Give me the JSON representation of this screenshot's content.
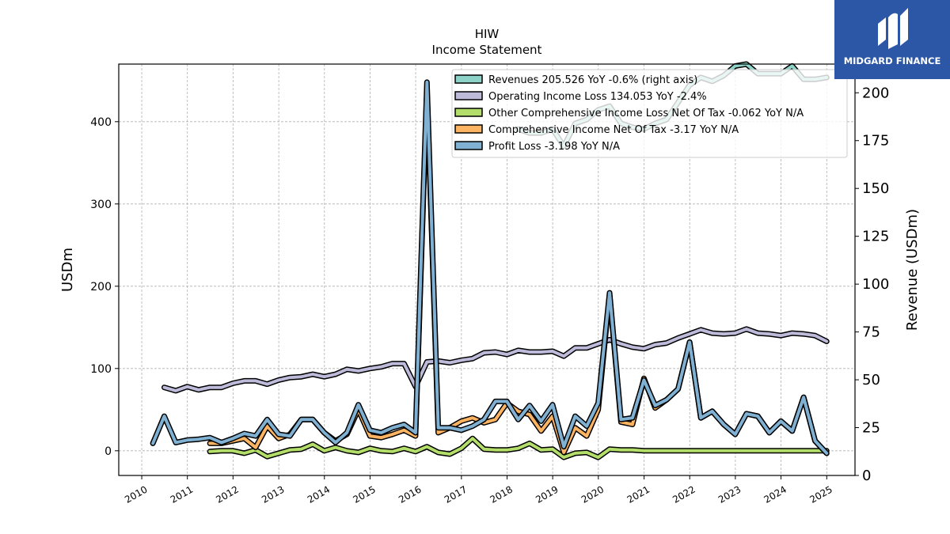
{
  "chart_data": {
    "type": "line",
    "title": "HIW",
    "subtitle": "Income Statement",
    "ylabel": "USDm",
    "y2label": "Revenue (USDm)",
    "ylim": [
      -30,
      470
    ],
    "y2lim": [
      0,
      215
    ],
    "xlim": [
      "2009-07-01",
      "2025-08-15"
    ],
    "yticks": [
      0,
      100,
      200,
      300,
      400
    ],
    "y2ticks": [
      0,
      25,
      50,
      75,
      100,
      125,
      150,
      175,
      200
    ],
    "xticks": [
      "2010",
      "2011",
      "2012",
      "2013",
      "2014",
      "2015",
      "2016",
      "2017",
      "2018",
      "2019",
      "2020",
      "2021",
      "2022",
      "2023",
      "2024",
      "2025"
    ],
    "grid": true,
    "legend_position": "top-right",
    "series": [
      {
        "name": "Revenues  205.526 YoY -0.6% (right axis)",
        "axis": "right",
        "color": "#8dd3c7",
        "x": [
          "2018-03-31",
          "2018-06-30",
          "2018-09-30",
          "2018-12-31",
          "2019-03-31",
          "2019-06-30",
          "2019-09-30",
          "2019-12-31",
          "2020-03-31",
          "2020-06-30",
          "2020-09-30",
          "2020-12-31",
          "2021-03-31",
          "2021-06-30",
          "2021-09-30",
          "2021-12-31",
          "2022-03-31",
          "2022-06-30",
          "2022-09-30",
          "2022-12-31",
          "2023-03-31",
          "2023-06-30",
          "2023-09-30",
          "2023-12-31",
          "2024-03-31",
          "2024-06-30",
          "2024-09-30",
          "2024-12-31"
        ],
        "values": [
          181,
          179,
          179,
          181,
          172,
          184,
          186,
          191,
          193,
          184,
          182,
          181,
          184,
          186,
          195,
          204,
          208,
          206,
          209,
          214,
          215,
          210,
          210,
          210,
          214,
          207,
          207,
          208
        ]
      },
      {
        "name": "Operating Income Loss  134.053 YoY -2.4%",
        "axis": "left",
        "color": "#bebada",
        "x": [
          "2010-06-30",
          "2010-09-30",
          "2010-12-31",
          "2011-03-31",
          "2011-06-30",
          "2011-09-30",
          "2011-12-31",
          "2012-03-31",
          "2012-06-30",
          "2012-09-30",
          "2012-12-31",
          "2013-03-31",
          "2013-06-30",
          "2013-09-30",
          "2013-12-31",
          "2014-03-31",
          "2014-06-30",
          "2014-09-30",
          "2014-12-31",
          "2015-03-31",
          "2015-06-30",
          "2015-09-30",
          "2015-12-31",
          "2016-03-31",
          "2016-06-30",
          "2016-09-30",
          "2016-12-31",
          "2017-03-31",
          "2017-06-30",
          "2017-09-30",
          "2017-12-31",
          "2018-03-31",
          "2018-06-30",
          "2018-09-30",
          "2018-12-31",
          "2019-03-31",
          "2019-06-30",
          "2019-09-30",
          "2019-12-31",
          "2020-03-31",
          "2020-06-30",
          "2020-09-30",
          "2020-12-31",
          "2021-03-31",
          "2021-06-30",
          "2021-09-30",
          "2021-12-31",
          "2022-03-31",
          "2022-06-30",
          "2022-09-30",
          "2022-12-31",
          "2023-03-31",
          "2023-06-30",
          "2023-09-30",
          "2023-12-31",
          "2024-03-31",
          "2024-06-30",
          "2024-09-30",
          "2024-12-31"
        ],
        "values": [
          77,
          73,
          78,
          74,
          77,
          77,
          82,
          85,
          85,
          81,
          86,
          89,
          90,
          93,
          90,
          93,
          99,
          97,
          100,
          102,
          106,
          106,
          78,
          108,
          109,
          107,
          110,
          112,
          119,
          120,
          117,
          122,
          120,
          120,
          121,
          115,
          125,
          125,
          130,
          135,
          130,
          126,
          124,
          129,
          131,
          137,
          142,
          147,
          143,
          142,
          143,
          148,
          143,
          142,
          140,
          143,
          142,
          140,
          133
        ]
      },
      {
        "name": "Other Comprehensive Income Loss Net Of Tax  -0.062 YoY N/A",
        "axis": "left",
        "color": "#b3de69",
        "x": [
          "2011-06-30",
          "2011-09-30",
          "2011-12-31",
          "2012-03-31",
          "2012-06-30",
          "2012-09-30",
          "2012-12-31",
          "2013-03-31",
          "2013-06-30",
          "2013-09-30",
          "2013-12-31",
          "2014-03-31",
          "2014-06-30",
          "2014-09-30",
          "2014-12-31",
          "2015-03-31",
          "2015-06-30",
          "2015-09-30",
          "2015-12-31",
          "2016-03-31",
          "2016-06-30",
          "2016-09-30",
          "2016-12-31",
          "2017-03-31",
          "2017-06-30",
          "2017-09-30",
          "2017-12-31",
          "2018-03-31",
          "2018-06-30",
          "2018-09-30",
          "2018-12-31",
          "2019-03-31",
          "2019-06-30",
          "2019-09-30",
          "2019-12-31",
          "2020-03-31",
          "2020-06-30",
          "2020-09-30",
          "2020-12-31",
          "2021-03-31",
          "2021-06-30",
          "2021-09-30",
          "2021-12-31",
          "2022-03-31",
          "2022-06-30",
          "2022-09-30",
          "2022-12-31",
          "2023-03-31",
          "2023-06-30",
          "2023-09-30",
          "2023-12-31",
          "2024-03-31",
          "2024-06-30",
          "2024-09-30",
          "2024-12-31"
        ],
        "values": [
          -1,
          0,
          0,
          -3,
          1,
          -7,
          -3,
          1,
          2,
          8,
          0,
          4,
          0,
          -2,
          3,
          0,
          -1,
          3,
          -1,
          5,
          -2,
          -4,
          3,
          15,
          2,
          1,
          1,
          3,
          9,
          1,
          2,
          -8,
          -3,
          -2,
          -8,
          2,
          1,
          1,
          0,
          0,
          0,
          0,
          0,
          0,
          0,
          0,
          0,
          0,
          0,
          0,
          0,
          0,
          0,
          0,
          0
        ]
      },
      {
        "name": "Comprehensive Income Net Of Tax  -3.17 YoY N/A",
        "axis": "left",
        "color": "#fdb462",
        "x": [
          "2011-06-30",
          "2011-09-30",
          "2011-12-31",
          "2012-03-31",
          "2012-06-30",
          "2012-09-30",
          "2012-12-31",
          "2013-03-31",
          "2013-06-30",
          "2013-09-30",
          "2013-12-31",
          "2014-03-31",
          "2014-06-30",
          "2014-09-30",
          "2014-12-31",
          "2015-03-31",
          "2015-06-30",
          "2015-09-30",
          "2015-12-31",
          "2016-03-31",
          "2016-06-30",
          "2016-09-30",
          "2016-12-31",
          "2017-03-31",
          "2017-06-30",
          "2017-09-30",
          "2017-12-31",
          "2018-03-31",
          "2018-06-30",
          "2018-09-30",
          "2018-12-31",
          "2019-03-31",
          "2019-06-30",
          "2019-09-30",
          "2019-12-31",
          "2020-03-31",
          "2020-06-30",
          "2020-09-30",
          "2020-12-31",
          "2021-03-31",
          "2021-06-30",
          "2021-09-30",
          "2021-12-31",
          "2022-03-31",
          "2022-06-30",
          "2022-09-30",
          "2022-12-31",
          "2023-03-31",
          "2023-06-30",
          "2023-09-30",
          "2023-12-31",
          "2024-03-31",
          "2024-06-30",
          "2024-09-30",
          "2024-12-31"
        ],
        "values": [
          9,
          9,
          12,
          15,
          4,
          30,
          15,
          20,
          38,
          38,
          22,
          12,
          20,
          50,
          18,
          16,
          20,
          25,
          18,
          440,
          22,
          28,
          36,
          40,
          34,
          38,
          58,
          48,
          44,
          24,
          42,
          -2,
          28,
          18,
          50,
          190,
          35,
          32,
          88,
          52,
          62,
          75,
          132,
          40,
          48,
          32,
          20,
          45,
          42,
          22,
          36,
          24,
          65,
          12,
          -3
        ]
      },
      {
        "name": "Profit Loss  -3.198 YoY N/A",
        "axis": "left",
        "color": "#80b1d3",
        "x": [
          "2010-03-31",
          "2010-06-30",
          "2010-09-30",
          "2010-12-31",
          "2011-03-31",
          "2011-06-30",
          "2011-09-30",
          "2011-12-31",
          "2012-03-31",
          "2012-06-30",
          "2012-09-30",
          "2012-12-31",
          "2013-03-31",
          "2013-06-30",
          "2013-09-30",
          "2013-12-31",
          "2014-03-31",
          "2014-06-30",
          "2014-09-30",
          "2014-12-31",
          "2015-03-31",
          "2015-06-30",
          "2015-09-30",
          "2015-12-31",
          "2016-03-31",
          "2016-06-30",
          "2016-09-30",
          "2016-12-31",
          "2017-03-31",
          "2017-06-30",
          "2017-09-30",
          "2017-12-31",
          "2018-03-31",
          "2018-06-30",
          "2018-09-30",
          "2018-12-31",
          "2019-03-31",
          "2019-06-30",
          "2019-09-30",
          "2019-12-31",
          "2020-03-31",
          "2020-06-30",
          "2020-09-30",
          "2020-12-31",
          "2021-03-31",
          "2021-06-30",
          "2021-09-30",
          "2021-12-31",
          "2022-03-31",
          "2022-06-30",
          "2022-09-30",
          "2022-12-31",
          "2023-03-31",
          "2023-06-30",
          "2023-09-30",
          "2023-12-31",
          "2024-03-31",
          "2024-06-30",
          "2024-09-30",
          "2024-12-31"
        ],
        "values": [
          9,
          42,
          10,
          13,
          14,
          16,
          10,
          15,
          21,
          18,
          38,
          20,
          18,
          38,
          38,
          22,
          10,
          22,
          56,
          25,
          22,
          28,
          32,
          22,
          448,
          28,
          28,
          25,
          30,
          38,
          60,
          60,
          38,
          55,
          36,
          56,
          5,
          42,
          30,
          58,
          192,
          38,
          40,
          86,
          55,
          62,
          75,
          132,
          40,
          48,
          32,
          20,
          45,
          42,
          22,
          36,
          24,
          65,
          12,
          -3
        ]
      }
    ]
  },
  "logo": {
    "name": "MIDGARD FINANCE"
  }
}
